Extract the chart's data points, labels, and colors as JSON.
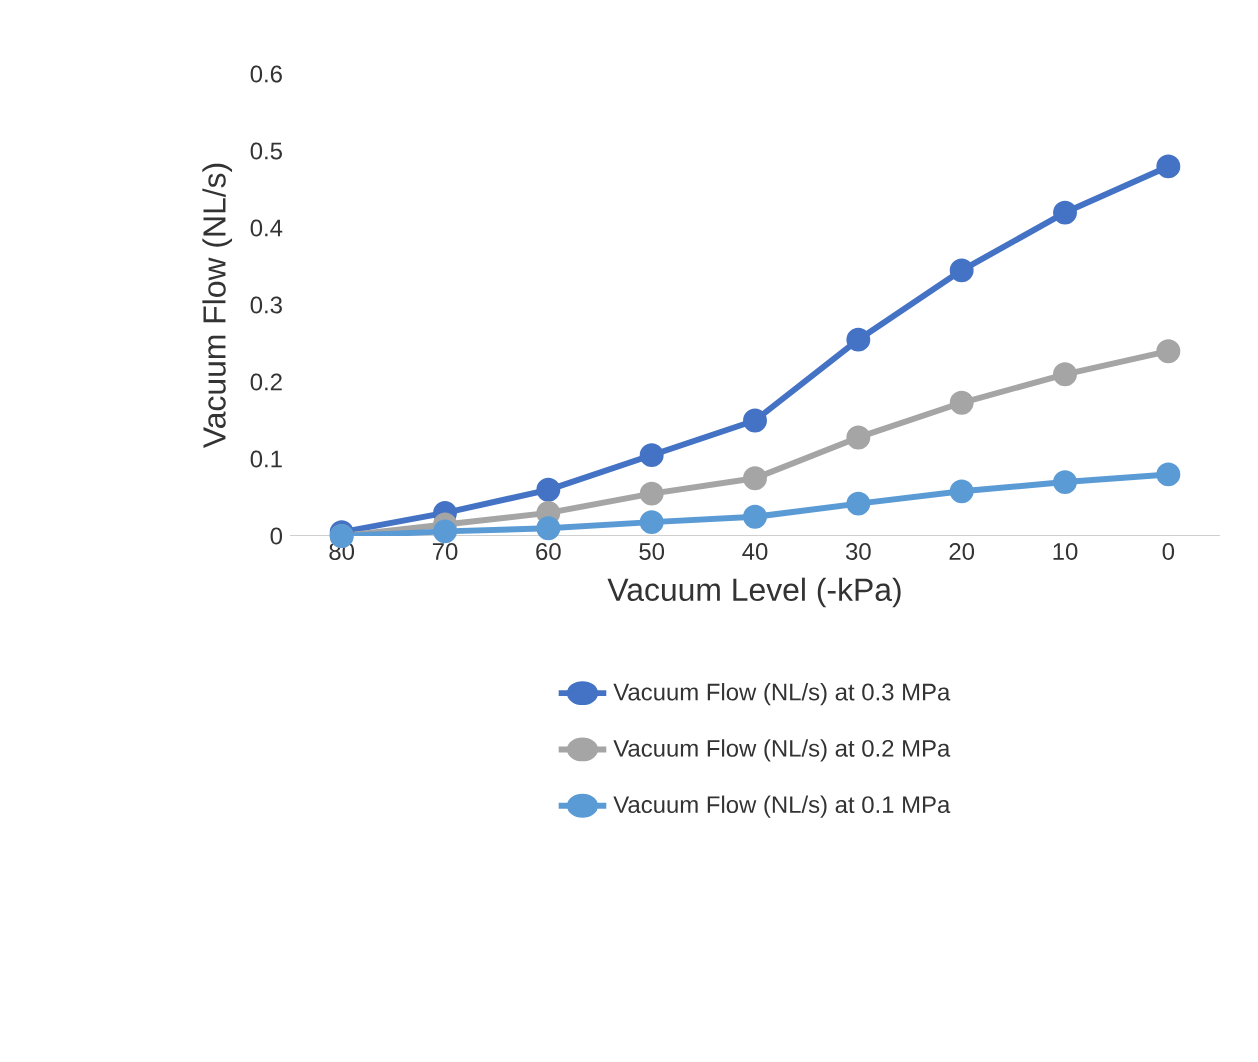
{
  "chart_data": {
    "type": "line",
    "xlabel": "Vacuum Level (-kPa)",
    "ylabel": "Vacuum Flow (NL/s)",
    "categories": [
      "80",
      "70",
      "60",
      "50",
      "40",
      "30",
      "20",
      "10",
      "0"
    ],
    "ylim": [
      0,
      0.6
    ],
    "yticks": [
      0,
      0.1,
      0.2,
      0.3,
      0.4,
      0.5,
      0.6
    ],
    "grid": false,
    "legend": "bottom",
    "marker": "circle",
    "line_style": "solid",
    "series": [
      {
        "name": "Vacuum Flow (NL/s) at 0.3 MPa",
        "color": "#4472c4",
        "values": [
          0.005,
          0.03,
          0.06,
          0.105,
          0.15,
          0.255,
          0.345,
          0.42,
          0.48
        ]
      },
      {
        "name": "Vacuum Flow (NL/s) at 0.2 MPa",
        "color": "#a5a5a5",
        "values": [
          0,
          0.015,
          0.03,
          0.055,
          0.075,
          0.128,
          0.173,
          0.21,
          0.24
        ]
      },
      {
        "name": "Vacuum Flow (NL/s) at 0.1 MPa",
        "color": "#5b9bd5",
        "values": [
          0,
          0.006,
          0.01,
          0.018,
          0.025,
          0.042,
          0.058,
          0.07,
          0.08
        ]
      }
    ]
  }
}
